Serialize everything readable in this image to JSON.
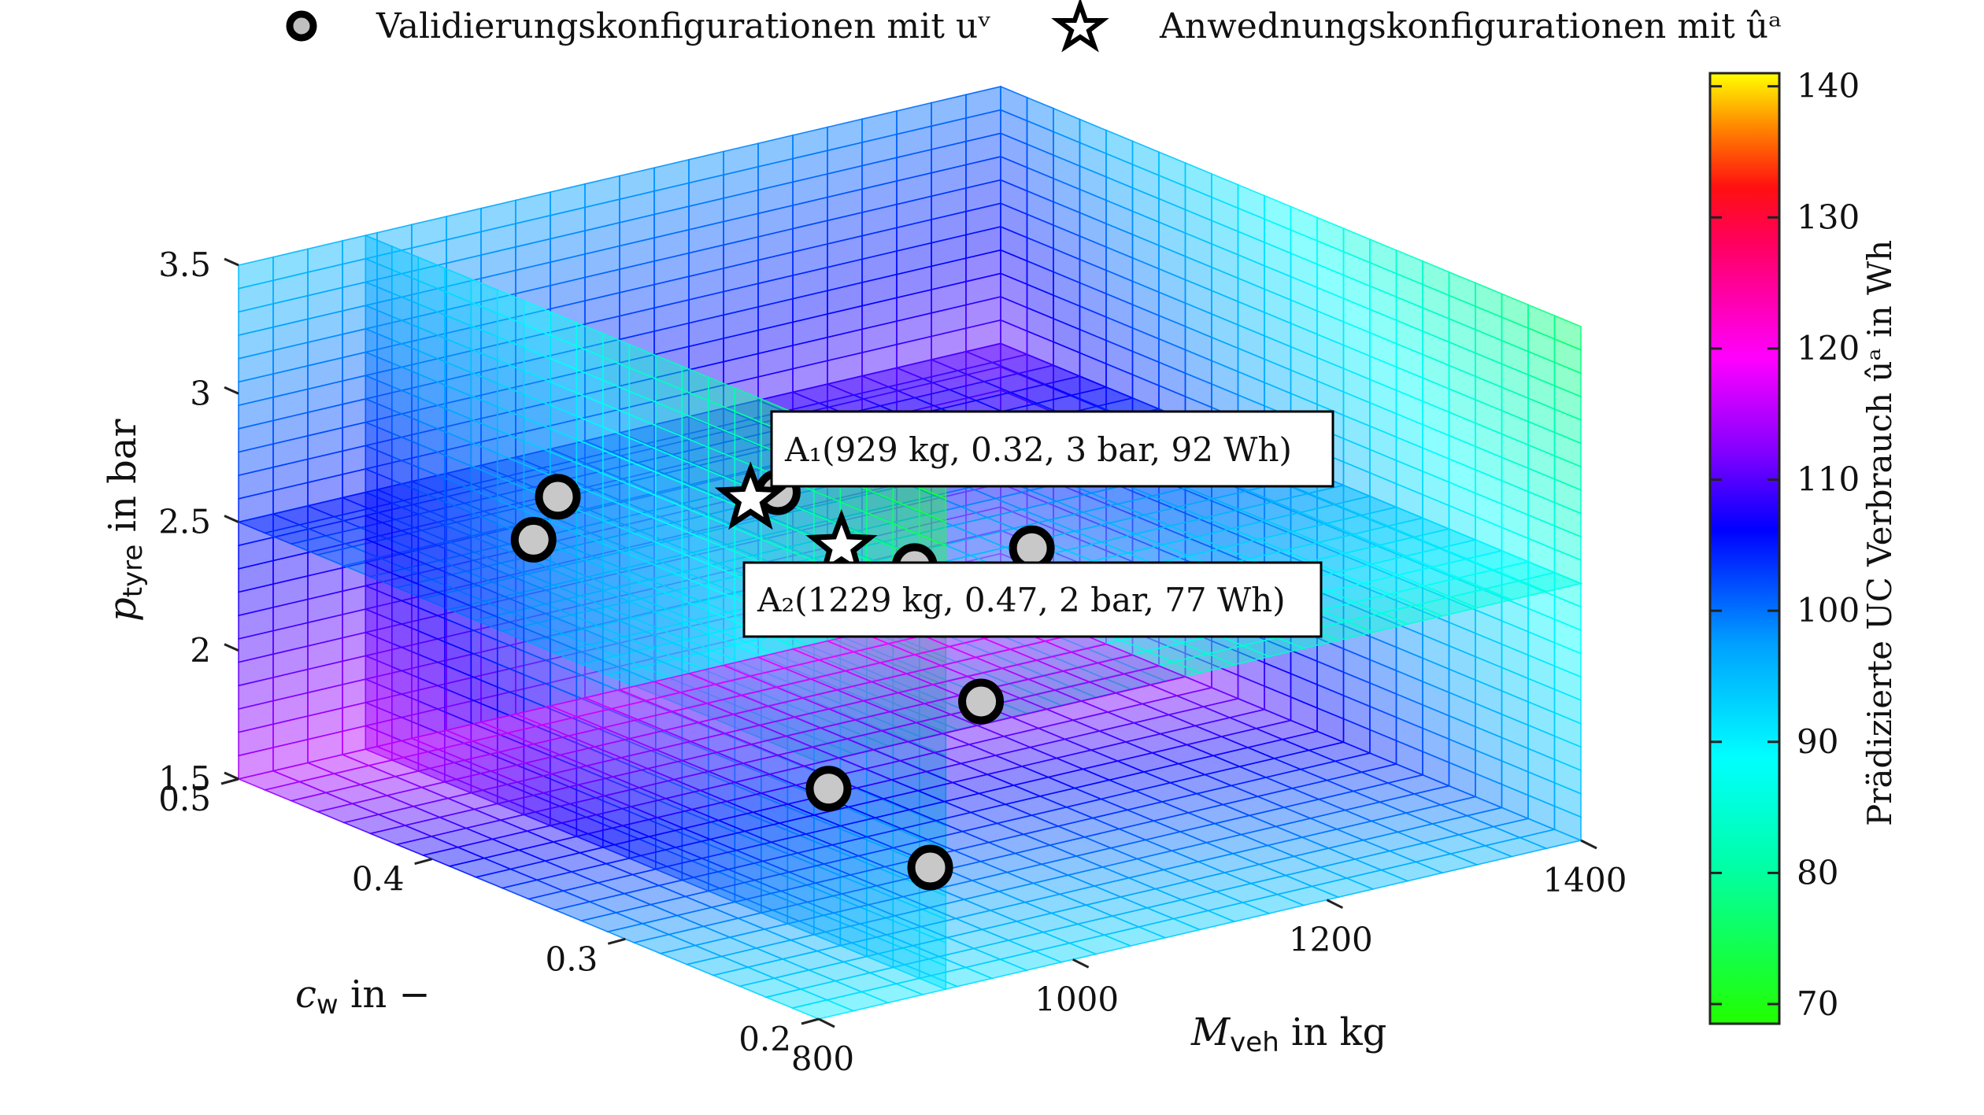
{
  "chart_data": {
    "type": "scatter",
    "legend": {
      "placement": "top",
      "entries": [
        {
          "marker": "circle",
          "label": "Validierungskonfigurationen mit uᵛ"
        },
        {
          "marker": "star",
          "label": "Anwednungskonfigurationen mit ûᵃ"
        }
      ]
    },
    "axes": {
      "x": {
        "label": "M_veh in kg",
        "label_main": "M",
        "label_sub": "veh",
        "label_rest": " in kg",
        "range": [
          800,
          1400
        ],
        "ticks": [
          800,
          1000,
          1200,
          1400
        ]
      },
      "y": {
        "label": "c_w in −",
        "label_main": "c",
        "label_sub": "w",
        "label_rest": " in −",
        "range": [
          0.2,
          0.5
        ],
        "ticks": [
          0.2,
          0.3,
          0.4,
          0.5
        ]
      },
      "z": {
        "label": "p_tyre in bar",
        "label_main": "p",
        "label_sub": "tyre",
        "label_rest": " in bar",
        "range": [
          1.5,
          3.5
        ],
        "ticks": [
          1.5,
          2,
          2.5,
          3,
          3.5
        ]
      }
    },
    "colorbar": {
      "label": "Prädizierte UC Verbrauch ûᵃ in Wh",
      "range": [
        68.5,
        141
      ],
      "ticks": [
        70,
        80,
        90,
        100,
        110,
        120,
        130,
        140
      ],
      "colormap": [
        "#00ff00",
        "#00ffff",
        "#0000ff",
        "#ff00ff",
        "#ff0000",
        "#ffff00"
      ]
    },
    "slices": {
      "x": [
        900,
        1400
      ],
      "y": [
        0.5
      ],
      "z": [
        2.5
      ]
    },
    "validation_points": [
      {
        "x": 920,
        "y": 0.3,
        "z": 3.1
      },
      {
        "x": 880,
        "y": 0.4,
        "z": 2.65
      },
      {
        "x": 960,
        "y": 0.44,
        "z": 2.6
      },
      {
        "x": 1120,
        "y": 0.3,
        "z": 2.65
      },
      {
        "x": 1180,
        "y": 0.4,
        "z": 2.2
      },
      {
        "x": 1150,
        "y": 0.2,
        "z": 2.7
      },
      {
        "x": 1080,
        "y": 0.3,
        "z": 2.1
      },
      {
        "x": 960,
        "y": 0.3,
        "z": 1.9
      },
      {
        "x": 1040,
        "y": 0.3,
        "z": 1.5
      }
    ],
    "application_points": [
      {
        "name": "A₁",
        "x": 929,
        "y": 0.32,
        "z": 3,
        "value": 92,
        "annotation": "A₁(929 kg,  0.32,  3 bar,  92 Wh)"
      },
      {
        "name": "A₂",
        "x": 1229,
        "y": 0.47,
        "z": 2,
        "value": 77,
        "annotation": "A₂(1229 kg,  0.47,  2 bar,  77 Wh)"
      }
    ],
    "grid": true
  }
}
